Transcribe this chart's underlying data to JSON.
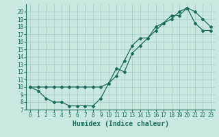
{
  "line1_x": [
    0,
    1,
    2,
    3,
    4,
    5,
    6,
    7,
    8,
    9,
    10,
    11,
    12,
    13,
    14,
    15,
    16,
    17,
    18,
    19,
    20,
    21,
    22,
    23
  ],
  "line1_y": [
    10,
    9.5,
    8.5,
    8.0,
    8.0,
    7.5,
    7.5,
    7.5,
    7.5,
    8.5,
    10.5,
    12.5,
    12.0,
    14.5,
    15.5,
    16.5,
    18.0,
    18.5,
    19.5,
    19.5,
    20.5,
    20.0,
    19.0,
    18.0
  ],
  "line2_x": [
    0,
    1,
    2,
    3,
    4,
    5,
    6,
    7,
    8,
    9,
    10,
    11,
    12,
    13,
    14,
    15,
    16,
    17,
    18,
    19,
    20,
    21,
    22,
    23
  ],
  "line2_y": [
    10,
    10.0,
    10.0,
    10.0,
    10.0,
    10.0,
    10.0,
    10.0,
    10.0,
    10.0,
    10.5,
    11.5,
    13.5,
    15.5,
    16.5,
    16.5,
    17.5,
    18.5,
    19.0,
    20.0,
    20.5,
    18.5,
    17.5,
    17.5
  ],
  "line_color": "#1a6b5a",
  "bg_color": "#c8e8e0",
  "grid_color": "#b0d0cc",
  "xlabel": "Humidex (Indice chaleur)",
  "xlim": [
    -0.5,
    23.5
  ],
  "ylim": [
    7,
    21
  ],
  "xticks": [
    0,
    1,
    2,
    3,
    4,
    5,
    6,
    7,
    8,
    9,
    10,
    11,
    12,
    13,
    14,
    15,
    16,
    17,
    18,
    19,
    20,
    21,
    22,
    23
  ],
  "yticks": [
    7,
    8,
    9,
    10,
    11,
    12,
    13,
    14,
    15,
    16,
    17,
    18,
    19,
    20
  ],
  "tick_fontsize": 5.5,
  "xlabel_fontsize": 7,
  "marker": "D",
  "markersize": 2.0,
  "linewidth": 0.9
}
